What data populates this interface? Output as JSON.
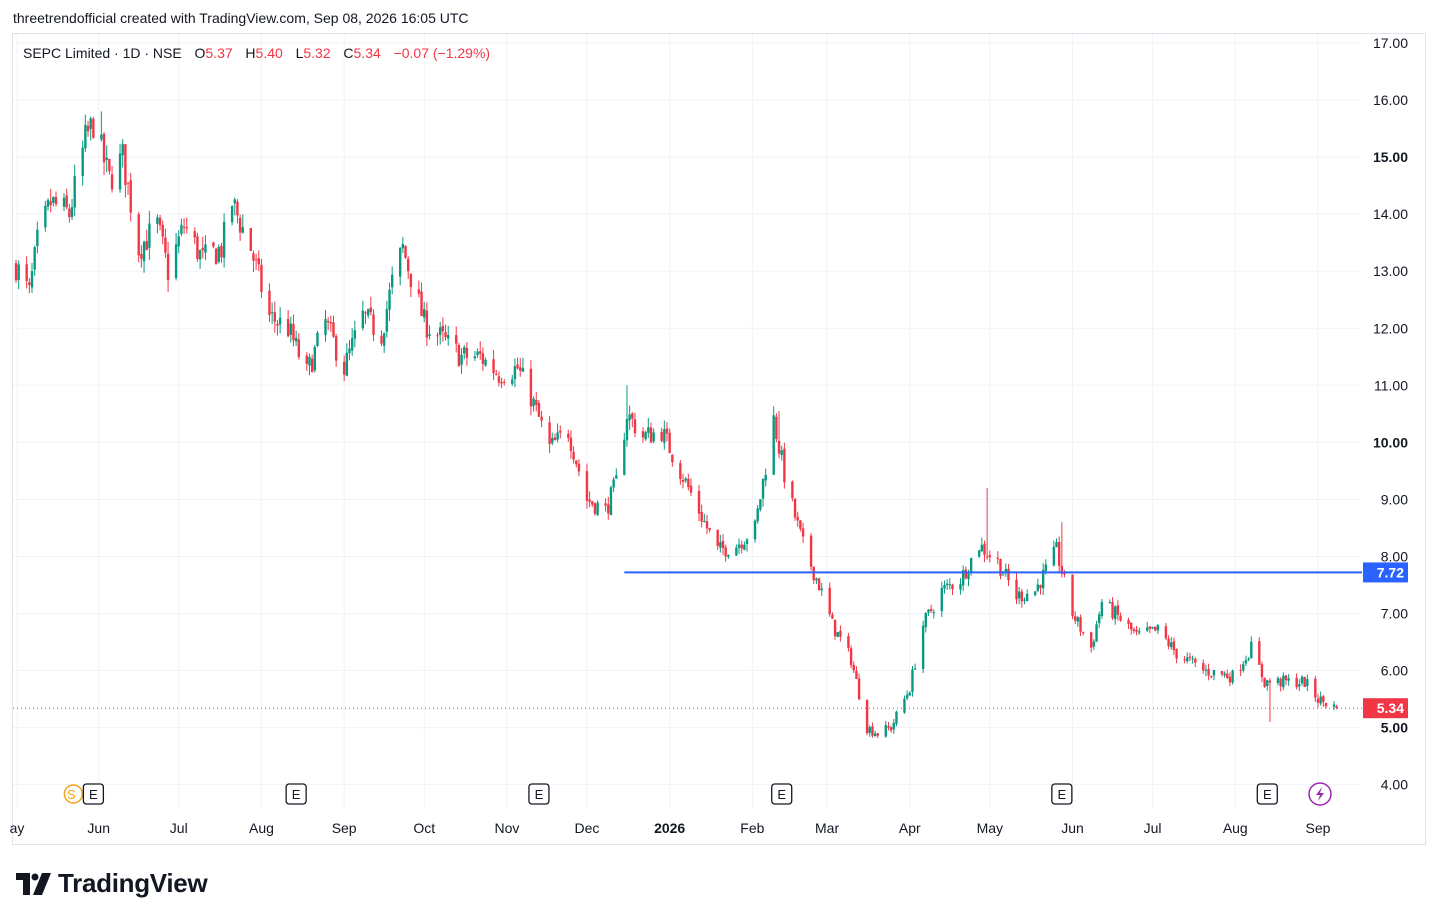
{
  "header": {
    "caption": "threetrendofficial created with TradingView.com, Sep 08, 2026 16:05 UTC"
  },
  "legend": {
    "symbol": "SEPC Limited · 1D · NSE",
    "open_label": "O",
    "open": "5.37",
    "high_label": "H",
    "high": "5.40",
    "low_label": "L",
    "low": "5.32",
    "close_label": "C",
    "close": "5.34",
    "change": "−0.07 (−1.29%)"
  },
  "brand": {
    "name": "TradingView",
    "logo_icon": "tradingview-logo-icon"
  },
  "colors": {
    "up": "#089981",
    "down": "#f23645",
    "hline": "#2962ff",
    "grid": "#f0f3fa",
    "text": "#131722"
  },
  "chart_data": {
    "type": "candlestick",
    "y_axis": {
      "ticks": [
        "17.00",
        "16.00",
        "15.00",
        "14.00",
        "13.00",
        "12.00",
        "11.00",
        "10.00",
        "9.00",
        "8.00",
        "7.00",
        "6.00",
        "5.00",
        "4.00"
      ],
      "bold_ticks": [
        "15.00",
        "10.00",
        "5.00"
      ],
      "range": [
        3.6,
        17.35
      ]
    },
    "x_axis": {
      "labels": [
        {
          "text": "ay",
          "date": "2025-05"
        },
        {
          "text": "Jun",
          "date": "2025-06"
        },
        {
          "text": "Jul",
          "date": "2025-07"
        },
        {
          "text": "Aug",
          "date": "2025-08"
        },
        {
          "text": "Sep",
          "date": "2025-09"
        },
        {
          "text": "Oct",
          "date": "2025-10"
        },
        {
          "text": "Nov",
          "date": "2025-11"
        },
        {
          "text": "Dec",
          "date": "2025-12"
        },
        {
          "text": "2026",
          "date": "2026-01",
          "bold": true
        },
        {
          "text": "Feb",
          "date": "2026-02"
        },
        {
          "text": "Mar",
          "date": "2026-03"
        },
        {
          "text": "Apr",
          "date": "2026-04"
        },
        {
          "text": "May",
          "date": "2026-05"
        },
        {
          "text": "Jun",
          "date": "2026-06"
        },
        {
          "text": "Jul",
          "date": "2026-07"
        },
        {
          "text": "Aug",
          "date": "2026-08"
        },
        {
          "text": "Sep",
          "date": "2026-09"
        }
      ]
    },
    "horizontal_line": {
      "value": 7.72,
      "label": "7.72",
      "start_date": "2025-12-15"
    },
    "last_price": {
      "value": 5.34,
      "label": "5.34"
    },
    "events": [
      {
        "text": "E",
        "date": "2025-05-30",
        "dividend_text": "S"
      },
      {
        "text": "E",
        "date": "2025-08-14"
      },
      {
        "text": "E",
        "date": "2025-11-13"
      },
      {
        "text": "E",
        "date": "2026-02-12"
      },
      {
        "text": "E",
        "date": "2026-05-28"
      },
      {
        "text": "E",
        "date": "2026-08-13"
      }
    ],
    "flash_icon": "lightning-icon",
    "price_path": [
      [
        "2025-05-01",
        13.1
      ],
      [
        "2025-05-06",
        12.6
      ],
      [
        "2025-05-09",
        13.5
      ],
      [
        "2025-05-14",
        14.2
      ],
      [
        "2025-05-21",
        14.0
      ],
      [
        "2025-05-27",
        15.3
      ],
      [
        "2025-05-30",
        15.6
      ],
      [
        "2025-06-05",
        14.6
      ],
      [
        "2025-06-10",
        15.0
      ],
      [
        "2025-06-16",
        13.4
      ],
      [
        "2025-06-23",
        13.8
      ],
      [
        "2025-06-27",
        13.0
      ],
      [
        "2025-07-03",
        13.8
      ],
      [
        "2025-07-10",
        13.2
      ],
      [
        "2025-07-17",
        13.4
      ],
      [
        "2025-07-21",
        14.2
      ],
      [
        "2025-07-28",
        13.4
      ],
      [
        "2025-08-04",
        12.2
      ],
      [
        "2025-08-11",
        12.0
      ],
      [
        "2025-08-18",
        11.2
      ],
      [
        "2025-08-25",
        12.1
      ],
      [
        "2025-09-01",
        11.3
      ],
      [
        "2025-09-08",
        12.2
      ],
      [
        "2025-09-15",
        11.9
      ],
      [
        "2025-09-19",
        12.8
      ],
      [
        "2025-09-23",
        13.4
      ],
      [
        "2025-10-01",
        12.1
      ],
      [
        "2025-10-08",
        11.8
      ],
      [
        "2025-10-15",
        11.5
      ],
      [
        "2025-10-22",
        11.5
      ],
      [
        "2025-10-29",
        11.2
      ],
      [
        "2025-11-05",
        11.3
      ],
      [
        "2025-11-10",
        10.8
      ],
      [
        "2025-11-17",
        9.9
      ],
      [
        "2025-11-24",
        10.2
      ],
      [
        "2025-12-01",
        9.0
      ],
      [
        "2025-12-08",
        8.8
      ],
      [
        "2025-12-12",
        9.3
      ],
      [
        "2025-12-16",
        10.5
      ],
      [
        "2025-12-22",
        10.1
      ],
      [
        "2025-12-29",
        10.2
      ],
      [
        "2026-01-05",
        9.5
      ],
      [
        "2026-01-12",
        8.8
      ],
      [
        "2026-01-19",
        8.1
      ],
      [
        "2026-01-26",
        8.2
      ],
      [
        "2026-02-02",
        8.5
      ],
      [
        "2026-02-09",
        10.4
      ],
      [
        "2026-02-14",
        9.2
      ],
      [
        "2026-02-20",
        8.2
      ],
      [
        "2026-02-26",
        7.5
      ],
      [
        "2026-03-03",
        6.8
      ],
      [
        "2026-03-10",
        6.2
      ],
      [
        "2026-03-16",
        5.0
      ],
      [
        "2026-03-20",
        4.9
      ],
      [
        "2026-03-25",
        5.0
      ],
      [
        "2026-04-01",
        5.7
      ],
      [
        "2026-04-06",
        6.8
      ],
      [
        "2026-04-13",
        7.4
      ],
      [
        "2026-04-20",
        7.6
      ],
      [
        "2026-04-27",
        8.2
      ],
      [
        "2026-05-04",
        7.9
      ],
      [
        "2026-05-11",
        7.3
      ],
      [
        "2026-05-18",
        7.4
      ],
      [
        "2026-05-26",
        8.1
      ],
      [
        "2026-06-01",
        7.0
      ],
      [
        "2026-06-08",
        6.4
      ],
      [
        "2026-06-12",
        7.2
      ],
      [
        "2026-06-19",
        6.9
      ],
      [
        "2026-06-25",
        6.6
      ],
      [
        "2026-07-03",
        6.7
      ],
      [
        "2026-07-10",
        6.3
      ],
      [
        "2026-07-20",
        6.0
      ],
      [
        "2026-07-31",
        5.9
      ],
      [
        "2026-08-07",
        6.4
      ],
      [
        "2026-08-12",
        5.8
      ],
      [
        "2026-08-20",
        5.8
      ],
      [
        "2026-08-27",
        5.8
      ],
      [
        "2026-09-01",
        5.5
      ],
      [
        "2026-09-08",
        5.34
      ]
    ],
    "spikes": [
      {
        "date": "2025-06-02",
        "high": 15.8
      },
      {
        "date": "2025-12-16",
        "high": 11.0
      },
      {
        "date": "2026-02-11",
        "high": 10.55
      },
      {
        "date": "2026-04-30",
        "high": 9.2
      },
      {
        "date": "2026-05-28",
        "high": 8.6
      },
      {
        "date": "2026-08-14",
        "low": 5.1
      }
    ]
  }
}
